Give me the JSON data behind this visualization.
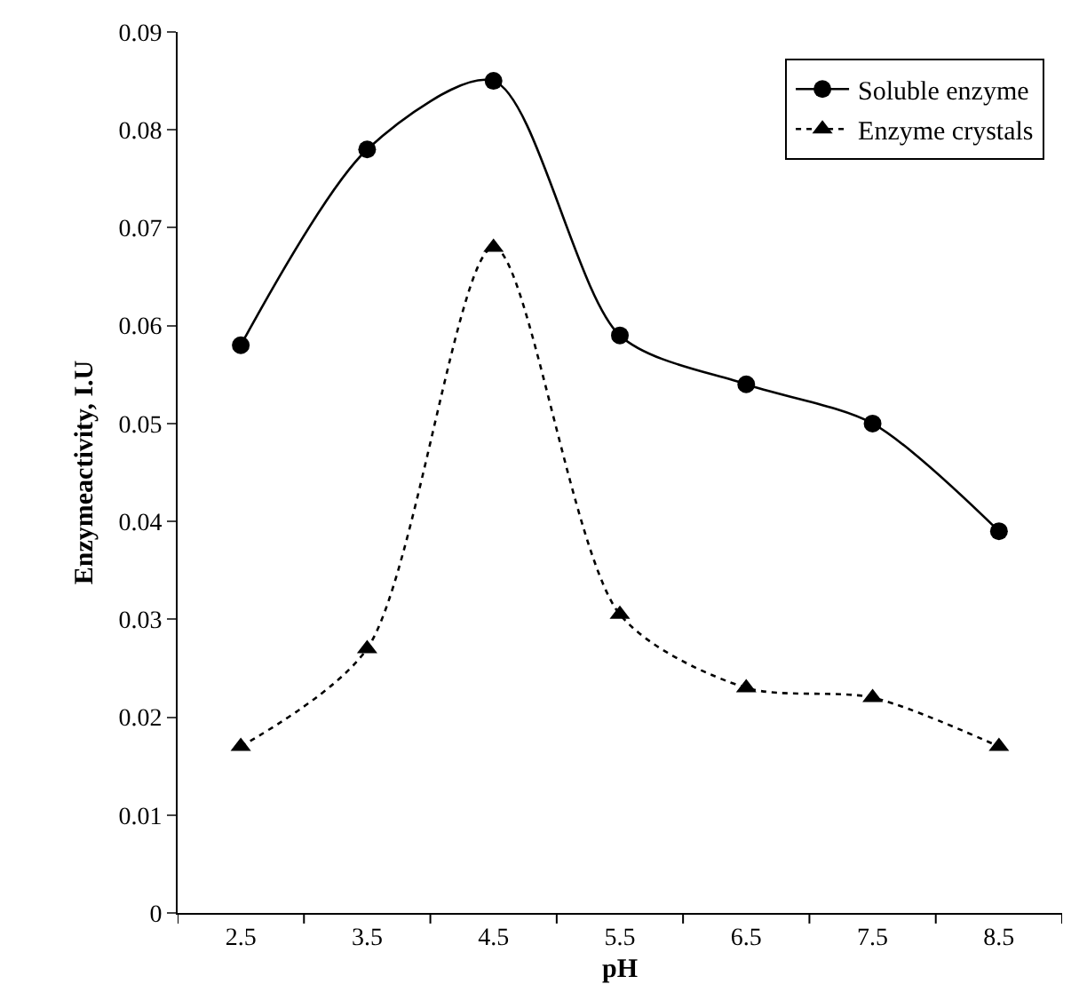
{
  "chart_data": {
    "type": "line",
    "xlabel": "pH",
    "ylabel": "Enzymeactivity, I.U",
    "categories": [
      "2.5",
      "3.5",
      "4.5",
      "5.5",
      "6.5",
      "7.5",
      "8.5"
    ],
    "series": [
      {
        "name": "Soluble enzyme",
        "color": "#000000",
        "marker": "circle",
        "line_style": "solid",
        "values": [
          0.058,
          0.078,
          0.085,
          0.059,
          0.054,
          0.05,
          0.039
        ]
      },
      {
        "name": "Enzyme crystals",
        "color": "#000000",
        "marker": "triangle",
        "line_style": "dotted",
        "values": [
          0.017,
          0.027,
          0.068,
          0.0305,
          0.023,
          0.022,
          0.017
        ]
      }
    ],
    "ylim": [
      0,
      0.09
    ],
    "yticks": [
      0,
      0.01,
      0.02,
      0.03,
      0.04,
      0.05,
      0.06,
      0.07,
      0.08,
      0.09
    ],
    "grid": false,
    "legend": "top right"
  }
}
